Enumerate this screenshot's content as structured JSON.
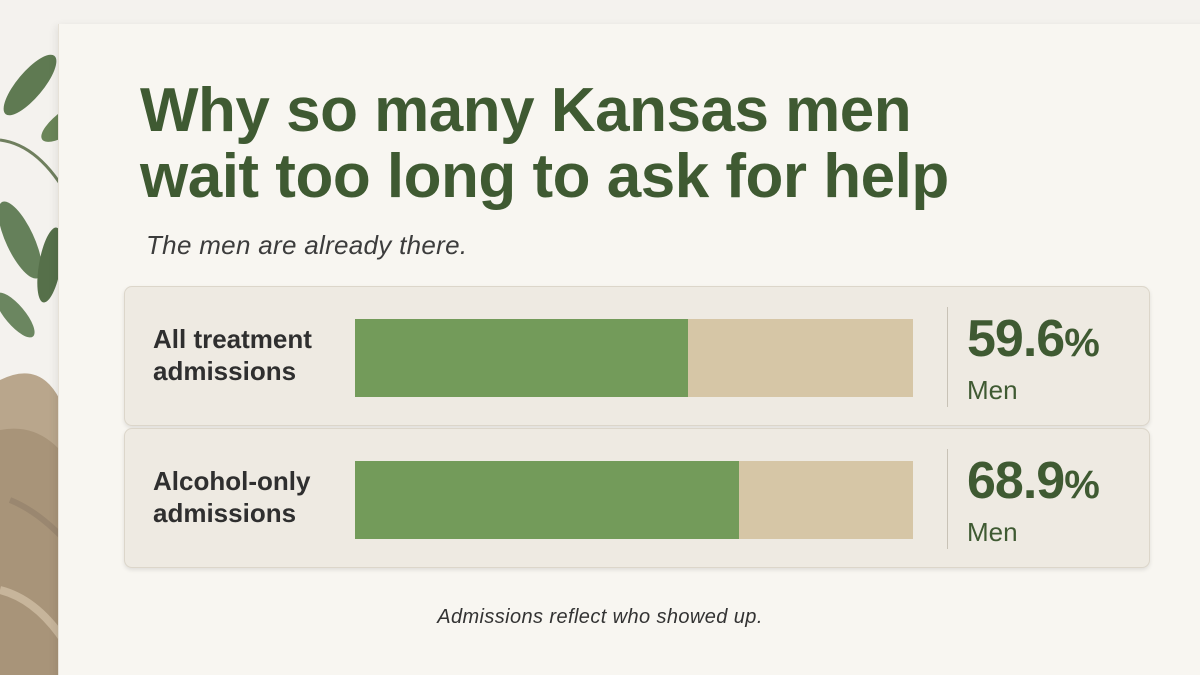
{
  "title_line1": "Why so many Kansas men",
  "title_line2": "wait too long to ask for help",
  "subtitle": "The men are already there.",
  "footnote": "Admissions reflect who showed up.",
  "colors": {
    "bar_fill": "#739b5a",
    "bar_track": "#d6c6a6",
    "title": "#3f5a32"
  },
  "chart_data": {
    "type": "bar",
    "orientation": "horizontal",
    "categories": [
      "All treatment\nadmissions",
      "Alcohol-only\nadmissions"
    ],
    "values": [
      59.6,
      68.9
    ],
    "value_labels": [
      "59.6",
      "68.9"
    ],
    "value_suffix": "%",
    "unit_label": "Men",
    "xlim": [
      0,
      100
    ],
    "grid": false
  }
}
